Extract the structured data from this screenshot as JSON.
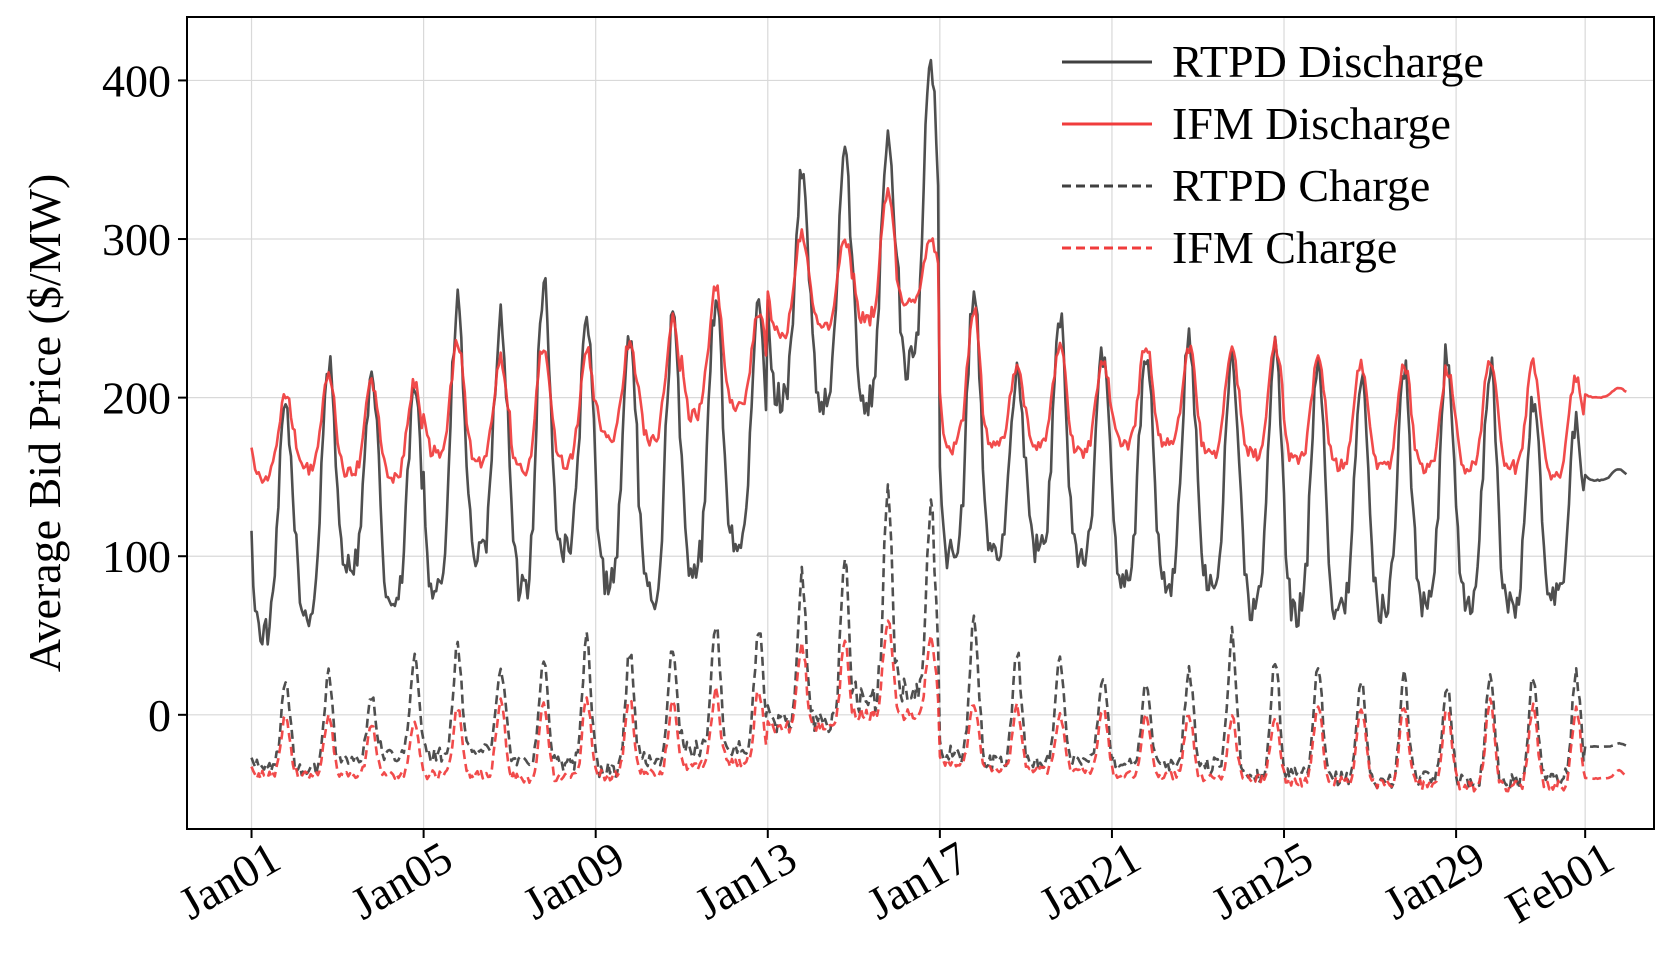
{
  "chart_data": {
    "type": "line",
    "title": "",
    "xlabel": "",
    "ylabel": "Average Bid Price ($/MW)",
    "x_start": "Jan01",
    "x_end": "Feb01",
    "x_ticks": [
      "Jan01",
      "Jan05",
      "Jan09",
      "Jan13",
      "Jan17",
      "Jan21",
      "Jan25",
      "Jan29",
      "Feb01"
    ],
    "x_tick_days": [
      0,
      4,
      8,
      12,
      16,
      20,
      24,
      28,
      31
    ],
    "xlim_days": [
      -1.5,
      32.6
    ],
    "y_ticks": [
      "0",
      "100",
      "200",
      "300",
      "400"
    ],
    "y_tick_values": [
      0,
      100,
      200,
      300,
      400
    ],
    "ylim": [
      -72,
      440
    ],
    "grid": true,
    "legend_position": "top-right",
    "sampling": "hourly",
    "series": [
      {
        "name": "RTPD Discharge",
        "color": "#404040",
        "dash": "solid",
        "daily_peak": [
          196,
          222,
          210,
          205,
          258,
          250,
          272,
          245,
          240,
          250,
          262,
          258,
          340,
          355,
          365,
          418,
          265,
          215,
          248,
          228,
          230,
          240,
          225,
          232,
          226,
          212,
          218,
          228,
          220,
          200,
          185,
          155
        ],
        "daily_trough": [
          52,
          64,
          95,
          70,
          82,
          100,
          82,
          105,
          86,
          74,
          95,
          108,
          200,
          195,
          200,
          220,
          100,
          104,
          104,
          100,
          88,
          84,
          82,
          68,
          65,
          65,
          68,
          70,
          72,
          68,
          76,
          148
        ]
      },
      {
        "name": "IFM Discharge",
        "color": "#f03c3c",
        "dash": "solid",
        "daily_peak": [
          203,
          212,
          210,
          210,
          234,
          225,
          235,
          230,
          236,
          250,
          272,
          255,
          305,
          300,
          330,
          300,
          255,
          220,
          232,
          225,
          235,
          232,
          228,
          234,
          225,
          222,
          222,
          218,
          225,
          222,
          214,
          206
        ],
        "daily_trough": [
          150,
          155,
          152,
          150,
          165,
          160,
          155,
          160,
          175,
          175,
          190,
          195,
          240,
          245,
          250,
          260,
          170,
          170,
          170,
          165,
          170,
          170,
          165,
          165,
          160,
          158,
          155,
          155,
          155,
          156,
          152,
          200
        ]
      },
      {
        "name": "RTPD Charge",
        "color": "#404040",
        "dash": "dashed",
        "daily_peak": [
          20,
          26,
          12,
          36,
          42,
          30,
          32,
          47,
          40,
          42,
          60,
          56,
          88,
          96,
          140,
          132,
          58,
          40,
          36,
          24,
          18,
          28,
          50,
          36,
          28,
          22,
          24,
          20,
          26,
          26,
          25,
          -18
        ],
        "daily_trough": [
          -32,
          -35,
          -28,
          -25,
          -25,
          -22,
          -28,
          -30,
          -35,
          -28,
          -22,
          -22,
          -5,
          -5,
          10,
          15,
          -25,
          -30,
          -30,
          -28,
          -30,
          -32,
          -32,
          -38,
          -38,
          -40,
          -42,
          -40,
          -42,
          -42,
          -40,
          -20
        ]
      },
      {
        "name": "IFM Charge",
        "color": "#f03c3c",
        "dash": "dashed",
        "daily_peak": [
          0,
          0,
          -5,
          -5,
          5,
          8,
          8,
          10,
          10,
          10,
          15,
          15,
          45,
          45,
          62,
          50,
          8,
          5,
          0,
          5,
          0,
          0,
          -2,
          0,
          5,
          5,
          5,
          5,
          8,
          5,
          5,
          -35
        ],
        "daily_trough": [
          -38,
          -38,
          -38,
          -38,
          -38,
          -38,
          -40,
          -40,
          -38,
          -36,
          -32,
          -30,
          -8,
          -8,
          0,
          0,
          -30,
          -35,
          -35,
          -35,
          -38,
          -38,
          -40,
          -40,
          -42,
          -42,
          -44,
          -44,
          -45,
          -45,
          -45,
          -40
        ]
      }
    ]
  }
}
